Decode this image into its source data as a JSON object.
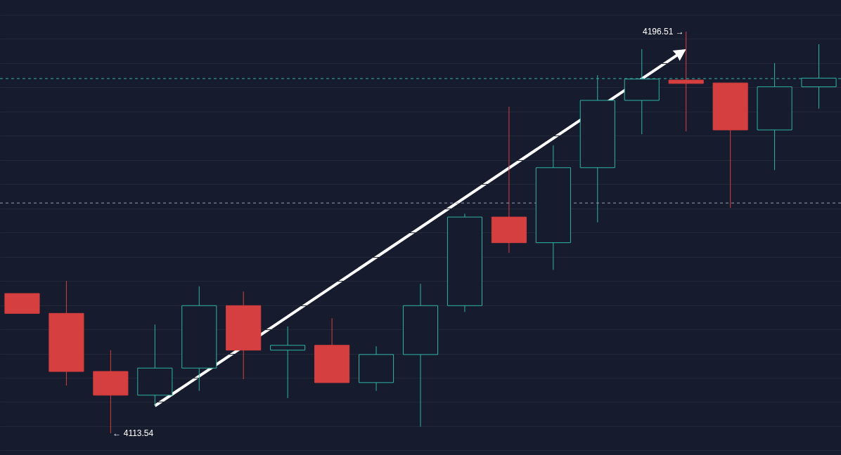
{
  "chart_data": {
    "type": "candlestick",
    "categories": [
      null,
      null,
      null,
      null,
      null,
      null,
      null,
      null,
      null,
      null,
      null,
      null,
      null,
      null,
      null,
      null,
      null,
      null,
      null
    ],
    "ohlc": [
      [
        4142.4,
        4142.4,
        4138.3,
        4138.3
      ],
      [
        4138.3,
        4145.0,
        4123.4,
        4126.3
      ],
      [
        4126.3,
        4130.7,
        4113.54,
        4121.4
      ],
      [
        4121.4,
        4136.0,
        4119.2,
        4127.0
      ],
      [
        4127.0,
        4143.9,
        4122.3,
        4139.9
      ],
      [
        4139.9,
        4142.8,
        4124.7,
        4130.7
      ],
      [
        4130.7,
        4135.6,
        4120.8,
        4131.7
      ],
      [
        4131.7,
        4137.3,
        4124.0,
        4124.0
      ],
      [
        4124.0,
        4131.5,
        4122.3,
        4129.8
      ],
      [
        4129.8,
        4144.4,
        4114.9,
        4139.9
      ],
      [
        4139.9,
        4158.9,
        4138.6,
        4158.2
      ],
      [
        4158.2,
        4181.0,
        4150.8,
        4152.9
      ],
      [
        4152.9,
        4173.0,
        4147.3,
        4168.4
      ],
      [
        4168.4,
        4187.5,
        4157.1,
        4182.3
      ],
      [
        4182.3,
        4192.9,
        4175.3,
        4186.7
      ],
      [
        4186.5,
        4196.51,
        4175.9,
        4185.8
      ],
      [
        4185.9,
        4185.9,
        4160.1,
        4176.2
      ],
      [
        4176.2,
        4190.0,
        4167.9,
        4185.1
      ],
      [
        4185.1,
        4193.9,
        4180.6,
        4186.9
      ]
    ],
    "colors": [
      "#d63f3f",
      "#d63f3f",
      "#d63f3f",
      "#2fb5a5",
      "#2fb5a5",
      "#d63f3f",
      "#2fb5a5",
      "#d63f3f",
      "#2fb5a5",
      "#2fb5a5",
      "#2fb5a5",
      "#d63f3f",
      "#2fb5a5",
      "#2fb5a5",
      "#2fb5a5",
      "#d63f3f",
      "#d63f3f",
      "#2fb5a5",
      "#2fb5a5"
    ],
    "ref_lines": [
      {
        "axis": "y",
        "value": 4186.8,
        "color": "#2fb5a5",
        "line_style": "dashed"
      },
      {
        "axis": "y",
        "value": 4161.1,
        "color": "#9aa0ad",
        "line_style": "dashed"
      }
    ],
    "annotations": [
      "4196.51 →",
      "← 4113.54"
    ],
    "grid": "y",
    "tick_labels": false
  }
}
